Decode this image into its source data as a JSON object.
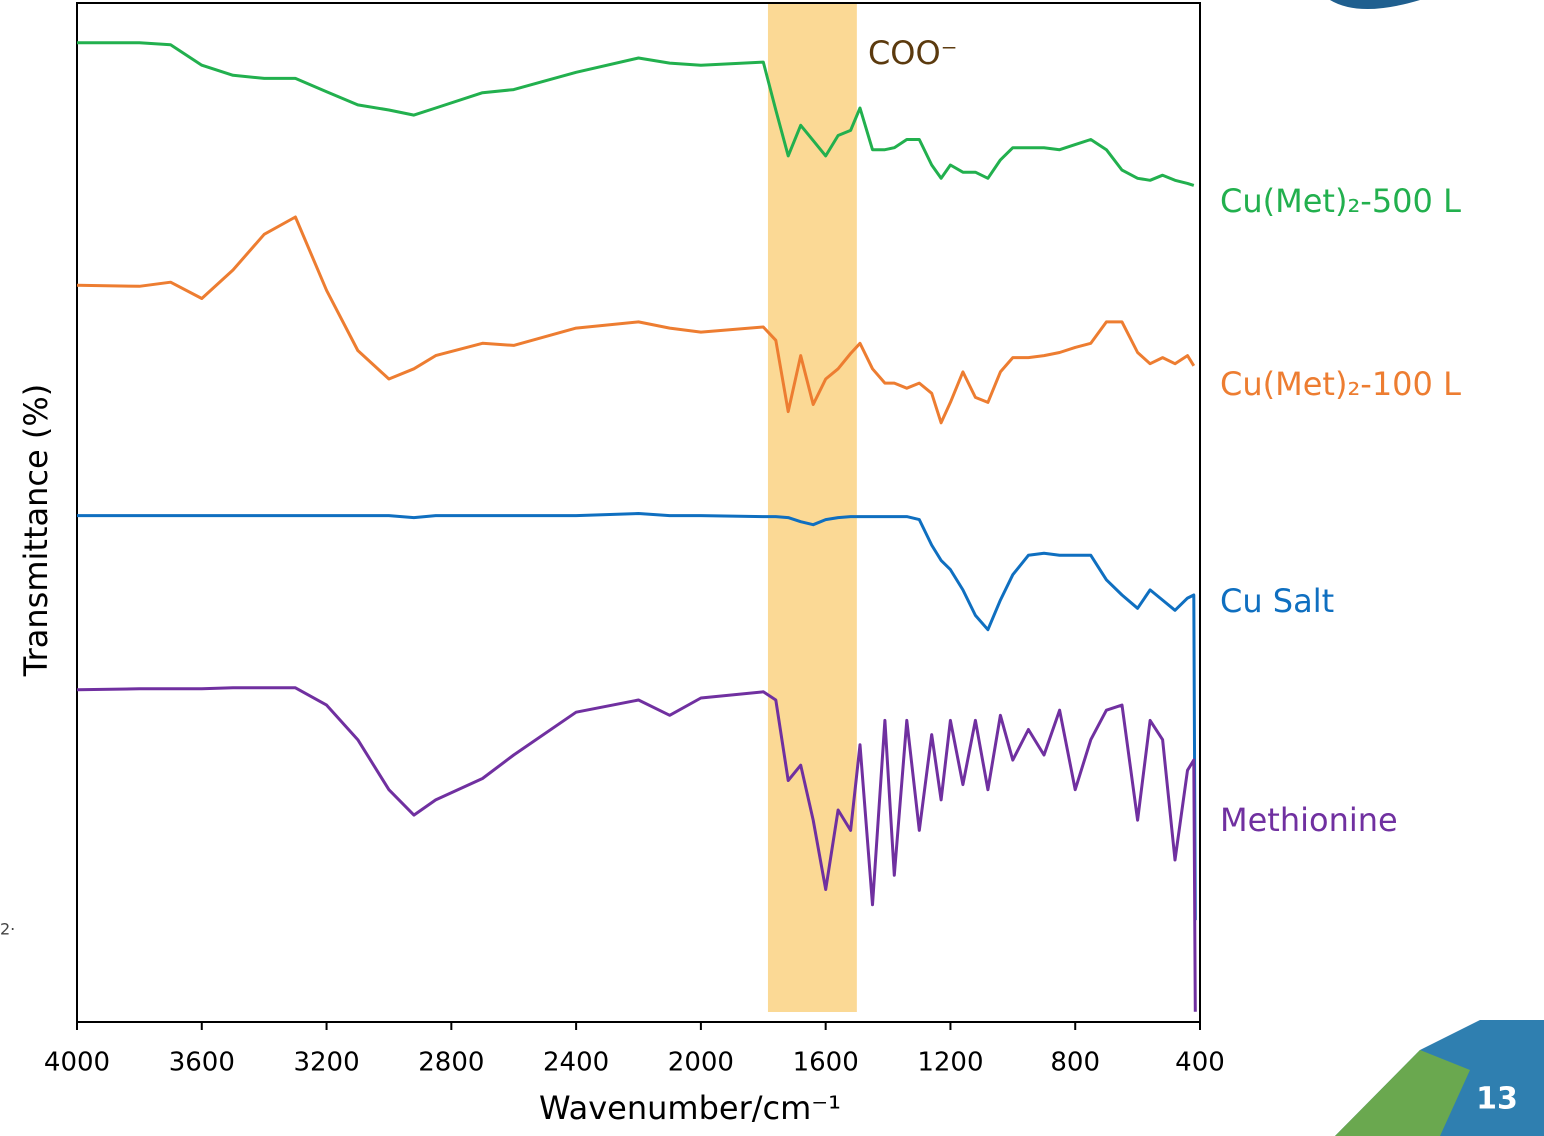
{
  "chart_data": {
    "type": "line",
    "x_label": "Wavenumber/cm⁻¹",
    "y_label": "Transmittance (%)",
    "xlim": [
      4000,
      400
    ],
    "xticks": [
      4000,
      3600,
      3200,
      2800,
      2400,
      2000,
      1600,
      1200,
      800,
      400
    ],
    "ylim": [
      0,
      100
    ],
    "highlight": {
      "x": [
        1785,
        1500
      ],
      "label": "COO⁻",
      "color": "#fbd995"
    },
    "x": [
      4000,
      3800,
      3700,
      3600,
      3500,
      3400,
      3300,
      3200,
      3100,
      3000,
      2920,
      2850,
      2700,
      2600,
      2400,
      2200,
      2100,
      2000,
      1800,
      1760,
      1720,
      1680,
      1640,
      1600,
      1560,
      1520,
      1490,
      1450,
      1410,
      1380,
      1340,
      1300,
      1260,
      1230,
      1200,
      1160,
      1120,
      1080,
      1040,
      1000,
      950,
      900,
      850,
      800,
      750,
      700,
      650,
      600,
      560,
      520,
      480,
      440,
      420,
      415
    ],
    "series": [
      {
        "name": "Cu(Met)₂-500 L",
        "color": "#22b04e",
        "values": [
          96.1,
          96.1,
          95.9,
          93.9,
          92.9,
          92.6,
          92.6,
          91.3,
          90.0,
          89.5,
          89.0,
          89.7,
          91.2,
          91.5,
          93.2,
          94.6,
          94.1,
          93.9,
          94.2,
          89.5,
          85.0,
          88.0,
          86.5,
          85.0,
          87.0,
          87.5,
          89.7,
          85.6,
          85.6,
          85.8,
          86.6,
          86.6,
          84.1,
          82.8,
          84.1,
          83.4,
          83.4,
          82.8,
          84.6,
          85.8,
          85.8,
          85.8,
          85.6,
          86.1,
          86.6,
          85.6,
          83.6,
          82.8,
          82.6,
          83.1,
          82.6,
          82.3,
          82.1,
          null
        ]
      },
      {
        "name": "Cu(Met)₂-100 L",
        "color": "#ed7d31",
        "values": [
          72.3,
          72.2,
          72.6,
          71.0,
          73.8,
          77.3,
          79.0,
          71.8,
          65.9,
          63.1,
          64.1,
          65.4,
          66.6,
          66.4,
          68.1,
          68.7,
          68.1,
          67.7,
          68.2,
          66.9,
          59.9,
          65.4,
          60.6,
          63.1,
          64.1,
          65.6,
          66.6,
          64.1,
          62.7,
          62.7,
          62.2,
          62.7,
          61.7,
          58.8,
          60.8,
          63.8,
          61.3,
          60.8,
          63.8,
          65.2,
          65.2,
          65.4,
          65.7,
          66.2,
          66.6,
          68.7,
          68.7,
          65.7,
          64.6,
          65.2,
          64.6,
          65.4,
          64.4,
          null
        ]
      },
      {
        "name": "Cu Salt",
        "color": "#0f6fc0",
        "values": [
          49.7,
          49.7,
          49.7,
          49.7,
          49.7,
          49.7,
          49.7,
          49.7,
          49.7,
          49.7,
          49.5,
          49.7,
          49.7,
          49.7,
          49.7,
          49.9,
          49.7,
          49.7,
          49.6,
          49.6,
          49.5,
          49.1,
          48.8,
          49.3,
          49.5,
          49.6,
          49.6,
          49.6,
          49.6,
          49.6,
          49.6,
          49.3,
          46.8,
          45.3,
          44.4,
          42.4,
          39.9,
          38.5,
          41.4,
          43.9,
          45.8,
          46.0,
          45.8,
          45.8,
          45.8,
          43.4,
          41.9,
          40.6,
          42.4,
          41.4,
          40.4,
          41.6,
          41.9,
          10.0
        ]
      },
      {
        "name": "Methionine",
        "color": "#7030a0",
        "values": [
          32.6,
          32.7,
          32.7,
          32.7,
          32.8,
          32.8,
          32.8,
          31.1,
          27.7,
          22.8,
          20.3,
          21.8,
          23.9,
          26.2,
          30.4,
          31.6,
          30.1,
          31.8,
          32.4,
          31.6,
          23.7,
          25.2,
          19.8,
          13.0,
          20.8,
          18.8,
          27.2,
          11.5,
          29.6,
          14.4,
          29.6,
          18.8,
          28.2,
          21.8,
          29.6,
          23.3,
          29.6,
          22.8,
          30.1,
          25.7,
          28.7,
          26.2,
          30.6,
          22.8,
          27.7,
          30.6,
          31.1,
          19.8,
          29.6,
          27.7,
          15.9,
          24.7,
          25.7,
          1.0
        ]
      }
    ],
    "page_number": "13",
    "fragment": "2·"
  }
}
